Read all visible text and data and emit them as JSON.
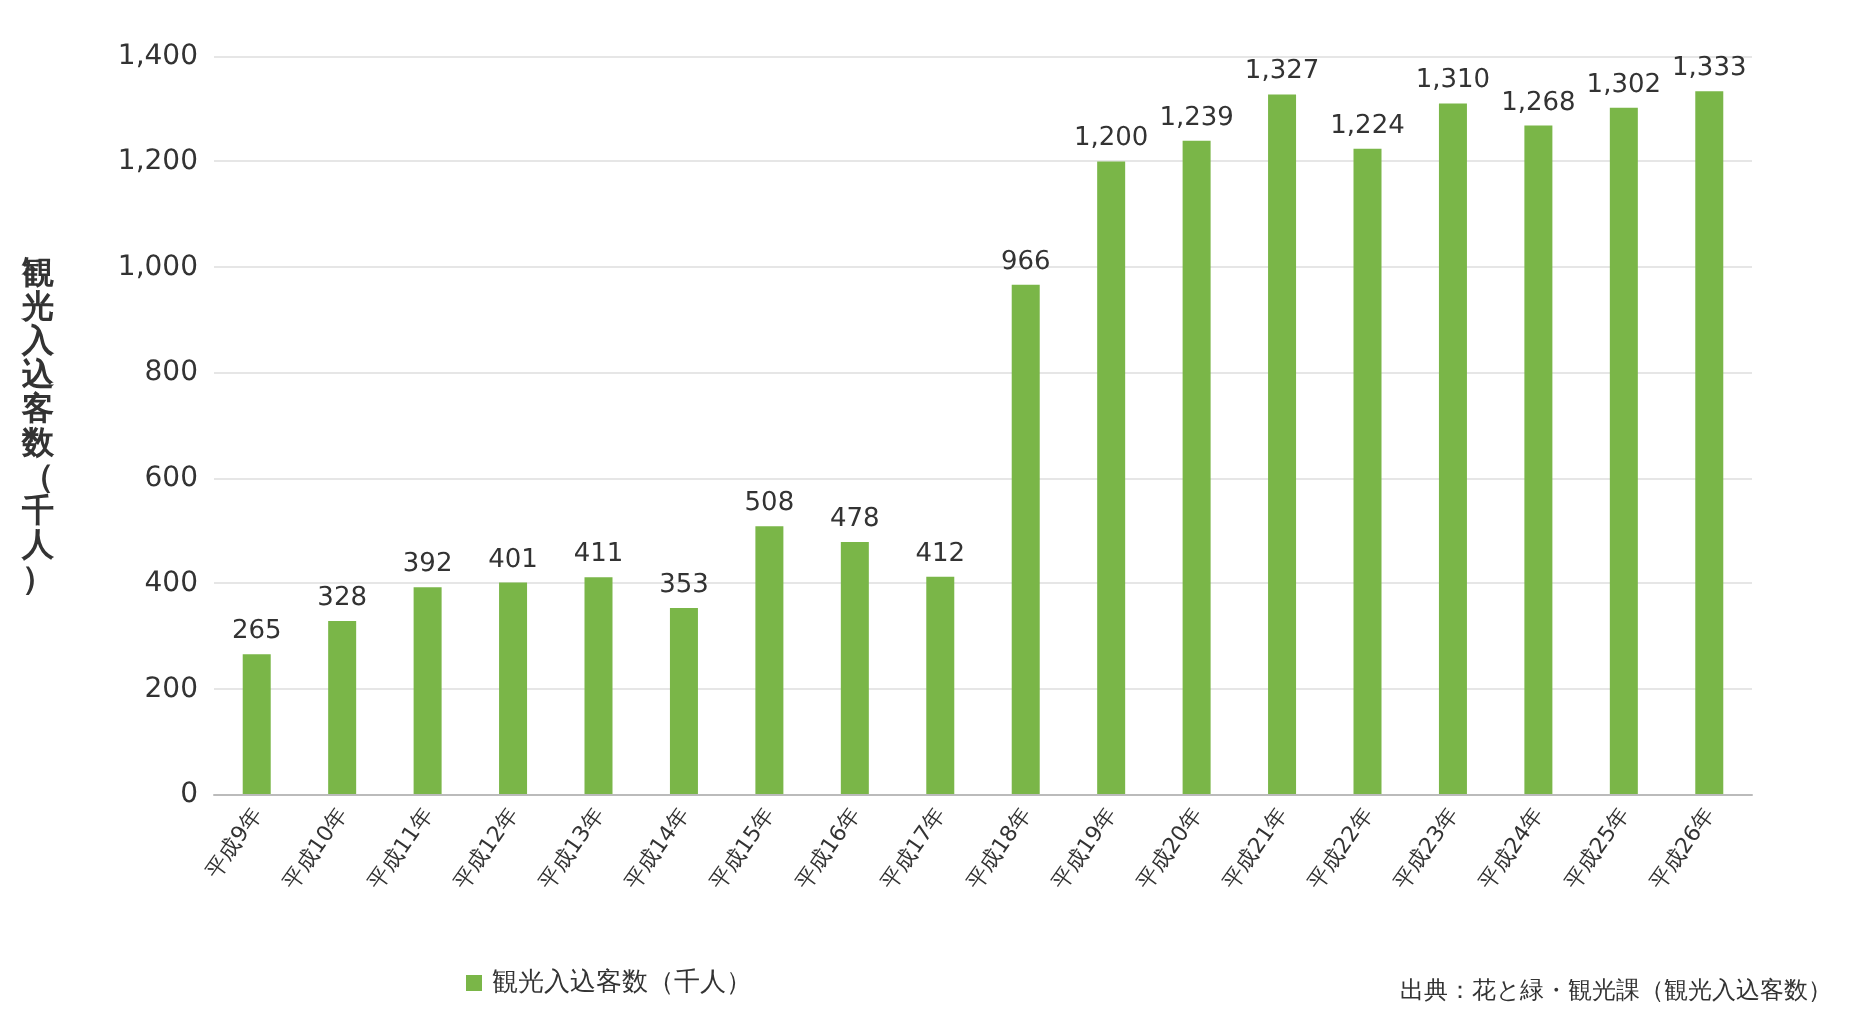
{
  "chart_data": {
    "type": "bar",
    "categories": [
      "平成9年",
      "平成10年",
      "平成11年",
      "平成12年",
      "平成13年",
      "平成14年",
      "平成15年",
      "平成16年",
      "平成17年",
      "平成18年",
      "平成19年",
      "平成20年",
      "平成21年",
      "平成22年",
      "平成23年",
      "平成24年",
      "平成25年",
      "平成26年"
    ],
    "series": [
      {
        "name": "観光入込客数（千人）",
        "color": "#7ab648",
        "values": [
          265,
          328,
          392,
          401,
          411,
          353,
          508,
          478,
          412,
          966,
          1200,
          1239,
          1327,
          1224,
          1310,
          1268,
          1302,
          1333
        ],
        "value_labels": [
          "265",
          "328",
          "392",
          "401",
          "411",
          "353",
          "508",
          "478",
          "412",
          "966",
          "1,200",
          "1,239",
          "1,327",
          "1,224",
          "1,310",
          "1,268",
          "1,302",
          "1,333"
        ]
      }
    ],
    "ylabel": "観光入込客数（千人）",
    "ylim": [
      0,
      1400
    ],
    "yticks": [
      0,
      200,
      400,
      600,
      800,
      {
        "value": 1000,
        "label": "1,000"
      },
      {
        "value": 1200,
        "label": "1,200"
      },
      {
        "value": 1400,
        "label": "1,400"
      }
    ],
    "grid": "y",
    "legend": "bottom",
    "annotations": [
      "出典：花と緑・観光課（観光入込客数）"
    ]
  }
}
